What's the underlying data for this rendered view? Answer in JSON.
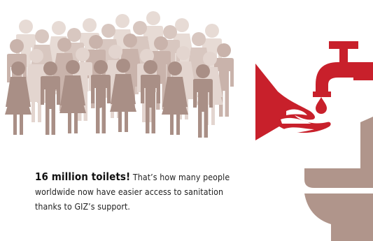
{
  "caption": {
    "headline": "16 million toilets!",
    "line1_rest": "That’s how many people",
    "line2": "worldwide now have easier access to sanitation",
    "line3": "thanks to GIZ’s support."
  },
  "icons": {
    "crowd": "people-crowd-icon",
    "tap": "water-tap-icon",
    "hand": "hand-icon",
    "drop": "water-drop-icon",
    "toilet": "toilet-icon"
  },
  "colors": {
    "crowd_light": "#e6d9d3",
    "crowd_mid": "#d5c2ba",
    "crowd_dark": "#a88f86",
    "accent_red": "#c8202b",
    "toilet": "#b0958b",
    "text": "#222222"
  }
}
